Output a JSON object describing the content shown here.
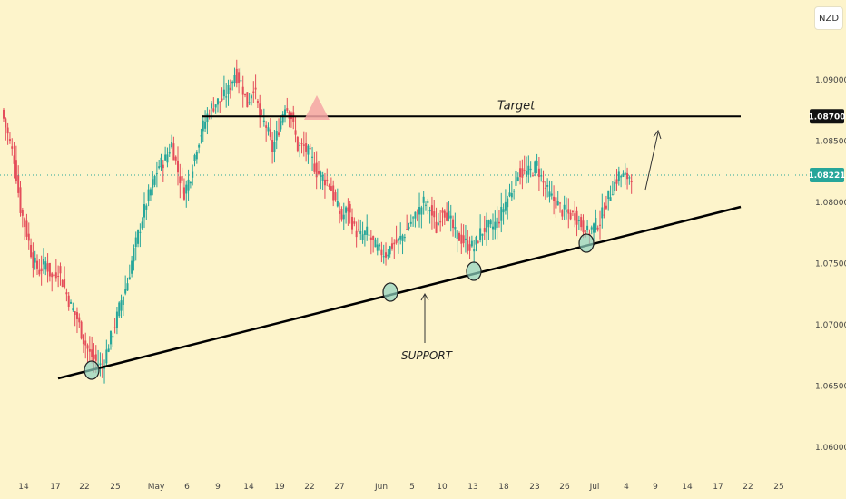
{
  "currency": "NZD",
  "colors": {
    "up": "#26a69a",
    "down": "#e44d5a",
    "price_line": "#26a69a",
    "target_line": "#000000",
    "support_line": "#000000",
    "circle_fill": "#8fd3c0"
  },
  "chart_data": {
    "type": "candlestick",
    "y_ticks": [
      "1.09000",
      "1.08500",
      "1.08000",
      "1.07500",
      "1.07000",
      "1.06500",
      "1.06000"
    ],
    "ylim": [
      1.058,
      1.0965
    ],
    "x_ticks": [
      "14",
      "17",
      "22",
      "25",
      "May",
      "6",
      "9",
      "14",
      "19",
      "22",
      "27",
      "Jun",
      "5",
      "10",
      "13",
      "18",
      "23",
      "26",
      "Jul",
      "4",
      "9",
      "14",
      "17",
      "22",
      "25"
    ],
    "target_label": "Target",
    "target_price": "1.08700",
    "current_price": "1.08221",
    "support_label": "SUPPORT",
    "path_points": [
      1.0875,
      1.0855,
      1.0835,
      1.0795,
      1.0775,
      1.0752,
      1.0744,
      1.0751,
      1.0738,
      1.0745,
      1.073,
      1.0715,
      1.0705,
      1.0688,
      1.0676,
      1.067,
      1.0665,
      1.0684,
      1.07,
      1.072,
      1.0735,
      1.076,
      1.078,
      1.08,
      1.0815,
      1.083,
      1.0835,
      1.0848,
      1.0825,
      1.0808,
      1.0822,
      1.0846,
      1.0862,
      1.0875,
      1.0881,
      1.0884,
      1.0891,
      1.0905,
      1.0898,
      1.088,
      1.0895,
      1.087,
      1.0862,
      1.0843,
      1.086,
      1.088,
      1.087,
      1.0845,
      1.0845,
      1.0838,
      1.0825,
      1.082,
      1.0815,
      1.08,
      1.0787,
      1.0795,
      1.0778,
      1.0772,
      1.0775,
      1.0766,
      1.076,
      1.0758,
      1.0765,
      1.0768,
      1.0775,
      1.0784,
      1.079,
      1.08,
      1.0795,
      1.0778,
      1.0795,
      1.0788,
      1.0774,
      1.077,
      1.0765,
      1.0763,
      1.0775,
      1.078,
      1.078,
      1.0787,
      1.08,
      1.081,
      1.0825,
      1.0823,
      1.0825,
      1.083,
      1.0815,
      1.0805,
      1.08,
      1.0793,
      1.079,
      1.079,
      1.0782,
      1.0775,
      1.078,
      1.0785,
      1.08,
      1.0812,
      1.0822,
      1.082,
      1.0822
    ]
  }
}
